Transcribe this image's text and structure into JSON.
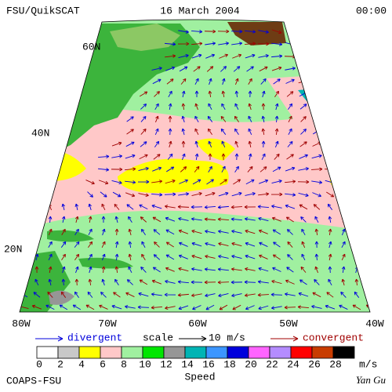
{
  "header": {
    "left": "FSU/QuikSCAT",
    "center": "16 March 2004",
    "right": "00:00"
  },
  "map": {
    "lat_labels": [
      "60N",
      "40N",
      "20N"
    ],
    "lon_labels": [
      "80W",
      "70W",
      "60W",
      "50W",
      "40W"
    ]
  },
  "legend": {
    "divergent": "divergent",
    "scale": "scale",
    "scale_value": "10 m/s",
    "convergent": "convergent"
  },
  "colorbar": {
    "ticks": [
      0,
      2,
      4,
      6,
      8,
      10,
      12,
      14,
      16,
      18,
      20,
      22,
      24,
      26,
      28
    ],
    "colors": [
      "#ffffff",
      "#c8c8c8",
      "#ffff00",
      "#ffc8c8",
      "#a0f0a0",
      "#00e600",
      "#969696",
      "#00b4b4",
      "#3c96ff",
      "#0000dc",
      "#ff64ff",
      "#b48cff",
      "#ff0000",
      "#c83c00",
      "#000000"
    ],
    "unit": "m/s",
    "title": "Speed"
  },
  "footer": {
    "left": "COAPS-FSU",
    "right": "Yan Gu"
  }
}
